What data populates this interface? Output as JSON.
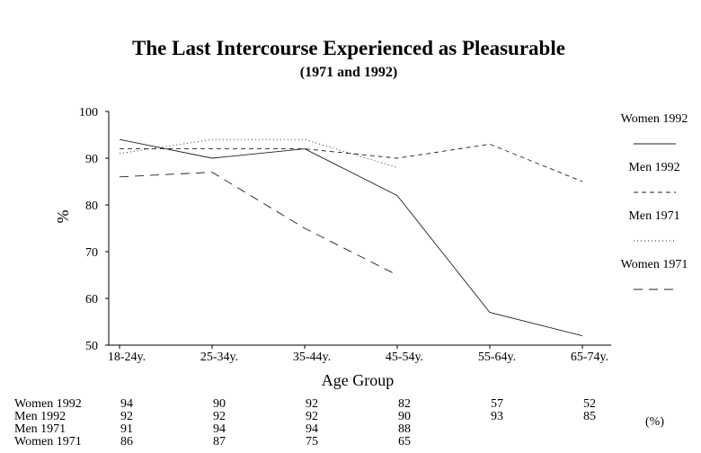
{
  "chart_data": {
    "type": "line",
    "title": "The Last Intercourse Experienced as Pleasurable",
    "subtitle": "(1971 and 1992)",
    "xlabel": "Age Group",
    "ylabel": "%",
    "categories": [
      "18-24y.",
      "25-34y.",
      "35-44y.",
      "45-54y.",
      "55-64y.",
      "65-74y."
    ],
    "ylim": [
      50,
      100
    ],
    "yticks": [
      "100",
      "90",
      "80",
      "70",
      "60",
      "50"
    ],
    "grid": false,
    "legend_position": "right",
    "series": [
      {
        "name": "Women 1992",
        "style": "solid",
        "values": [
          94,
          90,
          92,
          82,
          57,
          52
        ],
        "labels": [
          "94",
          "90",
          "92",
          "82",
          "57",
          "52"
        ]
      },
      {
        "name": "Men 1992",
        "style": "dashed",
        "values": [
          92,
          92,
          92,
          90,
          93,
          85
        ],
        "labels": [
          "92",
          "92",
          "92",
          "90",
          "93",
          "85"
        ]
      },
      {
        "name": "Men 1971",
        "style": "dotted",
        "values": [
          91,
          94,
          94,
          88,
          null,
          null
        ],
        "labels": [
          "91",
          "94",
          "94",
          "88",
          "",
          ""
        ]
      },
      {
        "name": "Women 1971",
        "style": "longdash",
        "values": [
          86,
          87,
          75,
          65,
          null,
          null
        ],
        "labels": [
          "86",
          "87",
          "75",
          "65",
          "",
          ""
        ]
      }
    ],
    "table_unit": "(%)"
  }
}
